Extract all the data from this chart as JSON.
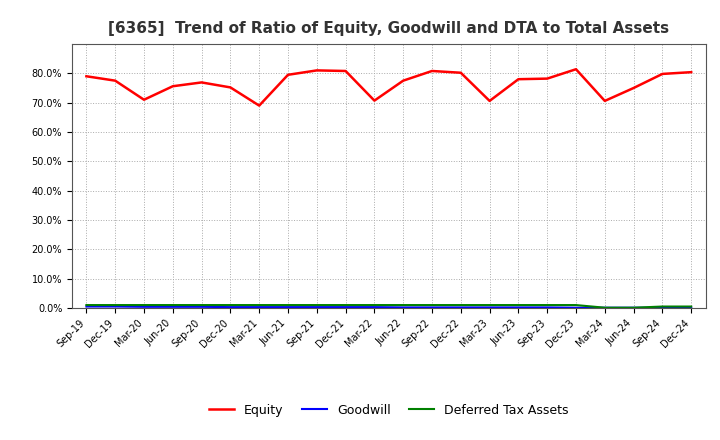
{
  "title": "[6365]  Trend of Ratio of Equity, Goodwill and DTA to Total Assets",
  "x_labels": [
    "Sep-19",
    "Dec-19",
    "Mar-20",
    "Jun-20",
    "Sep-20",
    "Dec-20",
    "Mar-21",
    "Jun-21",
    "Sep-21",
    "Dec-21",
    "Mar-22",
    "Jun-22",
    "Sep-22",
    "Dec-22",
    "Mar-23",
    "Jun-23",
    "Sep-23",
    "Dec-23",
    "Mar-24",
    "Jun-24",
    "Sep-24",
    "Dec-24"
  ],
  "equity": [
    0.79,
    0.775,
    0.71,
    0.756,
    0.769,
    0.752,
    0.69,
    0.795,
    0.81,
    0.808,
    0.707,
    0.775,
    0.808,
    0.802,
    0.706,
    0.78,
    0.782,
    0.814,
    0.706,
    0.75,
    0.798,
    0.804
  ],
  "goodwill": [
    0.005,
    0.005,
    0.004,
    0.004,
    0.004,
    0.003,
    0.003,
    0.003,
    0.003,
    0.003,
    0.003,
    0.002,
    0.002,
    0.002,
    0.002,
    0.002,
    0.002,
    0.001,
    0.001,
    0.001,
    0.001,
    0.001
  ],
  "dta": [
    0.01,
    0.01,
    0.01,
    0.01,
    0.01,
    0.01,
    0.01,
    0.01,
    0.01,
    0.01,
    0.01,
    0.01,
    0.01,
    0.01,
    0.01,
    0.01,
    0.01,
    0.01,
    0.001,
    0.001,
    0.005,
    0.005
  ],
  "equity_color": "#FF0000",
  "goodwill_color": "#0000FF",
  "dta_color": "#008000",
  "ylim": [
    0.0,
    0.9
  ],
  "yticks": [
    0.0,
    0.1,
    0.2,
    0.3,
    0.4,
    0.5,
    0.6,
    0.7,
    0.8
  ],
  "background_color": "#FFFFFF",
  "plot_bg_color": "#FFFFFF",
  "grid_color": "#AAAAAA",
  "title_fontsize": 11,
  "tick_fontsize": 7,
  "legend_fontsize": 9
}
